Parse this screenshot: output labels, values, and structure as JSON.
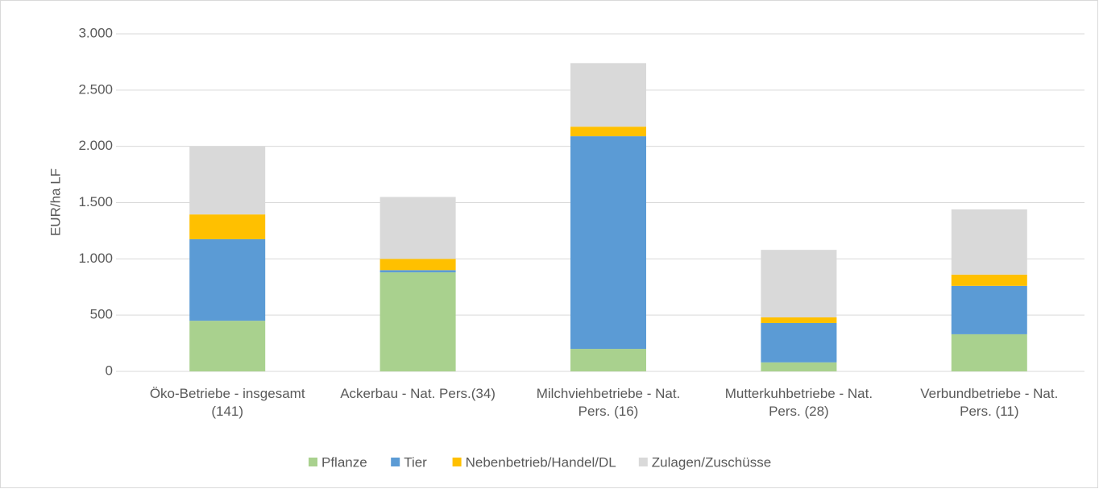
{
  "chart_data": {
    "type": "stacked_bar",
    "ylabel": "EUR/ha LF",
    "categories": [
      "Öko-Betriebe - insgesamt (141)",
      "Ackerbau - Nat. Pers.(34)",
      "Milchviehbetriebe - Nat. Pers. (16)",
      "Mutterkuhbetriebe - Nat. Pers. (28)",
      "Verbundbetriebe - Nat. Pers. (11)"
    ],
    "series": [
      {
        "name": "Pflanze",
        "color": "#a9d18e",
        "values": [
          450,
          880,
          200,
          80,
          330
        ]
      },
      {
        "name": "Tier",
        "color": "#5b9bd5",
        "values": [
          725,
          20,
          1890,
          350,
          430
        ]
      },
      {
        "name": "Nebenbetrieb/Handel/DL",
        "color": "#ffc000",
        "values": [
          220,
          100,
          85,
          50,
          100
        ]
      },
      {
        "name": "Zulagen/Zuschüsse",
        "color": "#d9d9d9",
        "values": [
          605,
          550,
          565,
          600,
          580
        ]
      }
    ],
    "ylim": [
      0,
      3000
    ],
    "yticks": [
      0,
      500,
      {
        "value": 1000,
        "label": "1.000"
      },
      {
        "value": 1500,
        "label": "1.500"
      },
      {
        "value": 2000,
        "label": "2.000"
      },
      {
        "value": 2500,
        "label": "2.500"
      },
      {
        "value": 3000,
        "label": "3.000"
      }
    ],
    "grid": true,
    "legend": "bottom"
  }
}
